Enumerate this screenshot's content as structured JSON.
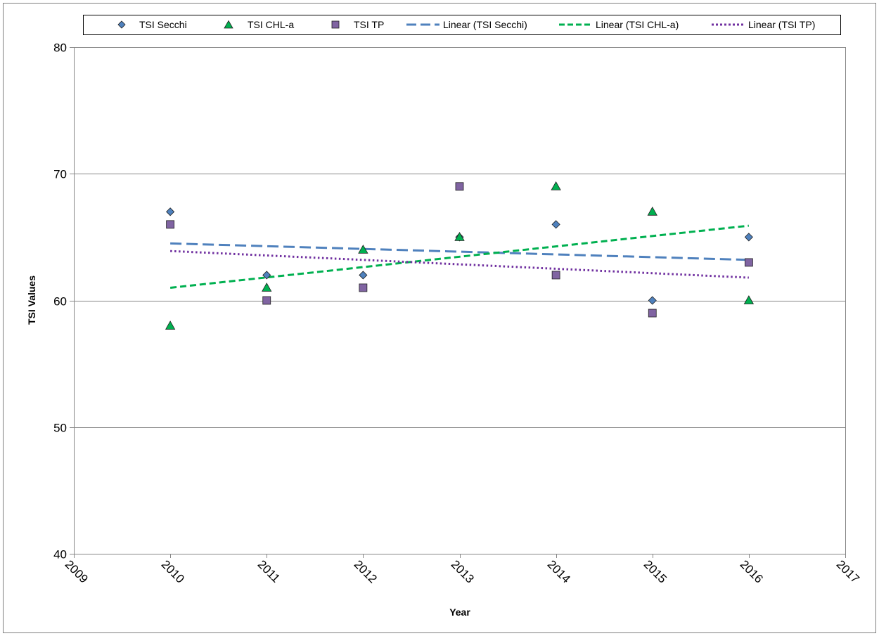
{
  "chart_data": {
    "type": "scatter",
    "title": "",
    "xlabel": "Year",
    "ylabel": "TSI Values",
    "xlim": [
      2009,
      2017
    ],
    "ylim": [
      40,
      80
    ],
    "x_ticks": [
      2009,
      2010,
      2011,
      2012,
      2013,
      2014,
      2015,
      2016,
      2017
    ],
    "y_ticks": [
      40,
      50,
      60,
      70,
      80
    ],
    "grid": "horizontal",
    "legend_position": "top",
    "series": [
      {
        "name": "TSI Secchi",
        "marker": "diamond",
        "color": "#4F81BD",
        "x": [
          2010,
          2011,
          2012,
          2013,
          2014,
          2015,
          2016
        ],
        "y": [
          67,
          62,
          62,
          65,
          66,
          60,
          65
        ]
      },
      {
        "name": "TSI CHL-a",
        "marker": "triangle",
        "color": "#00B050",
        "x": [
          2010,
          2011,
          2012,
          2013,
          2014,
          2015,
          2016
        ],
        "y": [
          58,
          61,
          64,
          65,
          69,
          67,
          60
        ]
      },
      {
        "name": "TSI TP",
        "marker": "square",
        "color": "#8064A2",
        "x": [
          2010,
          2011,
          2012,
          2013,
          2014,
          2015,
          2016
        ],
        "y": [
          66,
          60,
          61,
          69,
          62,
          59,
          63
        ]
      }
    ],
    "trendlines": [
      {
        "name": "Linear (TSI Secchi)",
        "of": "TSI Secchi",
        "style": "dashed",
        "color": "#4F81BD",
        "x": [
          2010,
          2016
        ],
        "y": [
          64.5,
          63.2
        ]
      },
      {
        "name": "Linear (TSI CHL-a)",
        "of": "TSI CHL-a",
        "style": "dashed",
        "color": "#00B050",
        "x": [
          2010,
          2016
        ],
        "y": [
          61,
          65.9
        ]
      },
      {
        "name": "Linear (TSI TP)",
        "of": "TSI TP",
        "style": "dotted",
        "color": "#7030A0",
        "x": [
          2010,
          2016
        ],
        "y": [
          63.9,
          61.8
        ]
      }
    ]
  }
}
